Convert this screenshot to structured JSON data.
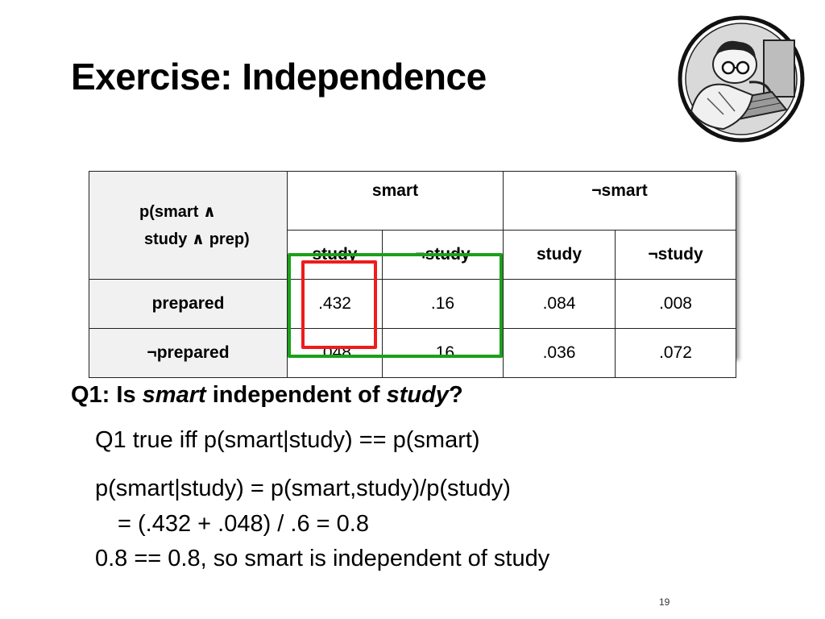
{
  "title": "Exercise: Independence",
  "logo": {
    "icon": "person-asleep-at-keyboard-icon"
  },
  "table": {
    "corner_line1": "p(smart ∧",
    "corner_line2": "study ∧ prep)",
    "col_groups": [
      "smart",
      "smart"
    ],
    "sub_headers": [
      "study",
      "study",
      "study",
      "study"
    ],
    "rows": [
      {
        "label": "prepared",
        "values": [
          ".432",
          ".16",
          ".084",
          ".008"
        ]
      },
      {
        "label": "prepared",
        "values": [
          ".048",
          ".16",
          ".036",
          ".072"
        ]
      }
    ],
    "highlight_colors": {
      "red": "#ee1c1c",
      "green": "#1aa01a"
    }
  },
  "q1": {
    "prefix": "Q1: Is ",
    "var1": "smart",
    "mid": " independent of ",
    "var2": "study",
    "suffix": "?"
  },
  "lines": [
    "Q1 true iff p(smart|study) == p(smart)",
    "p(smart|study) = p(smart,study)/p(study)",
    "= (.432 + .048) / .6   =  0.8",
    "0.8 == 0.8, so smart is independent of study"
  ],
  "page_number": "19"
}
